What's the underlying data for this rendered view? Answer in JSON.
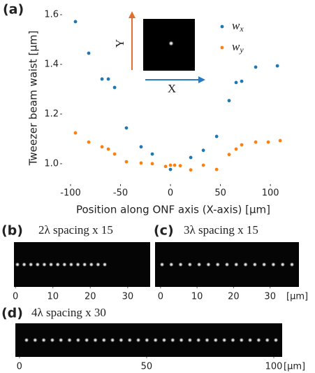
{
  "chart_data": {
    "type": "scatter",
    "panel_label": "(a)",
    "x_label": "Position along ONF axis (X-axis) [µm]",
    "y_label": "Tweezer beam waist [µm]",
    "xlim": [
      -107.7,
      116
    ],
    "ylim": [
      0.921,
      1.631
    ],
    "xticks": [
      -100,
      -50,
      0,
      50,
      100
    ],
    "yticks": [
      {
        "value": 1.0,
        "label": "1.0"
      },
      1.2,
      1.4,
      1.6
    ],
    "grid": false,
    "legend": "upper right",
    "inset": {
      "x_label": "X",
      "y_label": "Y"
    },
    "series": [
      {
        "name": "wx",
        "color": "#1f77b4",
        "x": [
          -95.1,
          -81.8,
          -68.5,
          -62.2,
          -55.9,
          -44.1,
          -29.4,
          -18.2,
          0,
          20.3,
          32.9,
          46.2,
          58.7,
          65.7,
          71.3,
          85.3,
          107
        ],
        "values": [
          1.572,
          1.445,
          1.341,
          1.341,
          1.307,
          1.144,
          1.068,
          1.039,
          0.977,
          1.025,
          1.054,
          1.11,
          1.254,
          1.327,
          1.332,
          1.389,
          1.394
        ]
      },
      {
        "name": "wy",
        "color": "#ff7f0e",
        "x": [
          -95.1,
          -81.8,
          -68.5,
          -62.2,
          -55.9,
          -44.1,
          -29.4,
          -18.2,
          -4.9,
          0,
          4.2,
          9.8,
          20.3,
          32.9,
          46.2,
          58.7,
          65.7,
          71.3,
          85.3,
          97.9,
          109.8
        ],
        "values": [
          1.124,
          1.087,
          1.068,
          1.059,
          1.039,
          1.008,
          1.003,
          1.0,
          0.989,
          0.994,
          0.994,
          0.992,
          0.975,
          0.994,
          0.977,
          1.037,
          1.059,
          1.076,
          1.087,
          1.087,
          1.093
        ]
      }
    ]
  },
  "panels": [
    {
      "label": "(b)",
      "caption": "2λ spacing x 15",
      "xlim": [
        -0.4,
        36
      ],
      "xticks": [
        0,
        10,
        20,
        30
      ]
    },
    {
      "label": "(c)",
      "caption": "3λ spacing x 15",
      "xlim": [
        -1.5,
        37.9
      ],
      "xticks": [
        0,
        10,
        20,
        30
      ],
      "unit": "[µm]"
    },
    {
      "label": "(d)",
      "caption": "4λ spacing x 30",
      "xlim": [
        -1.6,
        103.3
      ],
      "xticks": [
        0,
        50,
        100
      ],
      "unit": "[µm]"
    }
  ]
}
